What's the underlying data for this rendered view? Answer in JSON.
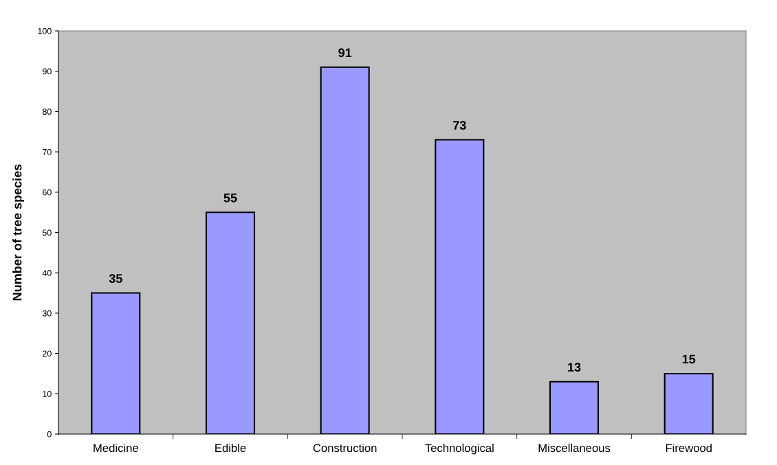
{
  "chart_data": {
    "type": "bar",
    "ylabel": "Number of tree species",
    "categories": [
      "Medicine",
      "Edible",
      "Construction",
      "Technological",
      "Miscellaneous",
      "Firewood"
    ],
    "values": [
      35,
      55,
      91,
      73,
      13,
      15
    ],
    "color": "#9999ff",
    "ylim": [
      0,
      100
    ],
    "yticks": [
      0,
      10,
      20,
      30,
      40,
      50,
      60,
      70,
      80,
      90,
      100
    ],
    "data_labels": true,
    "grid": false,
    "legend": false
  }
}
